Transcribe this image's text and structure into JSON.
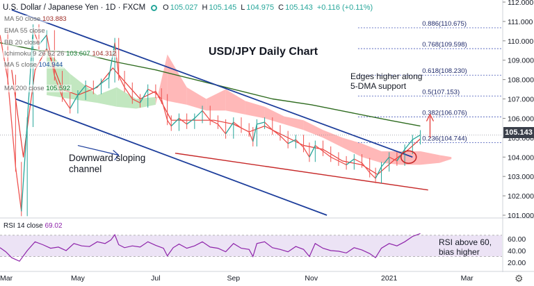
{
  "header": {
    "symbol": "U.S. Dollar / Japanese Yen · 1D · FXCM",
    "open_label": "O",
    "open": "105.027",
    "high_label": "H",
    "high": "105.145",
    "low_label": "L",
    "low": "104.975",
    "close_label": "C",
    "close": "105.143",
    "change": "+0.116 (+0.11%)"
  },
  "indicators": [
    {
      "label": "MA 50 close",
      "value": "103.883"
    },
    {
      "label": "EMA 55 close",
      "value": ""
    },
    {
      "label": "BB 20 close",
      "value": ""
    },
    {
      "label": "Ichimoku 9 26 52 26",
      "value": "103.607",
      "value2": "104.312"
    },
    {
      "label": "MA 5 close",
      "value": "104.944"
    },
    {
      "label": "MA 200 close",
      "value": "105.592"
    }
  ],
  "annotations": {
    "title": "USD/JPY Daily Chart",
    "edges": [
      "Edges higher along",
      "5-DMA support"
    ],
    "channel": [
      "Downward sloping",
      "channel"
    ],
    "rsi_note": [
      "RSI above 60,",
      "bias higher"
    ]
  },
  "current_price": "105.143",
  "rsi_label": "RSI 14 close",
  "rsi_value": "69.02",
  "colors": {
    "candle_up": "#26a69a",
    "candle_down": "#ef5350",
    "channel": "#1c3d9b",
    "support": "#c62828",
    "ma200": "#2e6b1f",
    "ma5": "#e53935",
    "cloud_red": "#ffabab",
    "cloud_green": "#b7e3b5",
    "fib": "#3f51b5",
    "rsi": "#8e24aa",
    "rsi_band": "#ece3f5",
    "price_tag": "#3a3f4a"
  },
  "chart_data": {
    "type": "line",
    "title": "USD/JPY Daily Chart",
    "price_axis": {
      "min": 101.0,
      "max": 112.0,
      "ticks": [
        "101.000",
        "102.000",
        "103.000",
        "104.000",
        "105.000",
        "106.000",
        "107.000",
        "108.000",
        "109.000",
        "110.000",
        "111.000",
        "112.000"
      ]
    },
    "rsi_axis": {
      "min": 20,
      "max": 60,
      "ticks": [
        "20.00",
        "40.00",
        "60.00"
      ],
      "band": [
        30,
        70
      ]
    },
    "x_axis": {
      "ticks": [
        "Mar",
        "May",
        "Jul",
        "Sep",
        "Nov",
        "2021",
        "Mar"
      ],
      "tick_positions": [
        0,
        2,
        4,
        6,
        8,
        10,
        12
      ],
      "span": [
        0,
        12.9
      ]
    },
    "last_bar_x": 10.8,
    "price_series": {
      "name": "USD/JPY",
      "points": [
        [
          0.0,
          110.3
        ],
        [
          0.2,
          108.0
        ],
        [
          0.4,
          103.5
        ],
        [
          0.55,
          101.2
        ],
        [
          0.7,
          105.8
        ],
        [
          0.85,
          110.6
        ],
        [
          1.0,
          109.8
        ],
        [
          1.2,
          110.3
        ],
        [
          1.4,
          108.2
        ],
        [
          1.6,
          107.1
        ],
        [
          1.8,
          106.5
        ],
        [
          2.0,
          107.2
        ],
        [
          2.2,
          107.7
        ],
        [
          2.4,
          107.5
        ],
        [
          2.6,
          107.8
        ],
        [
          2.8,
          108.1
        ],
        [
          2.95,
          109.9
        ],
        [
          3.05,
          108.2
        ],
        [
          3.2,
          107.6
        ],
        [
          3.4,
          107.0
        ],
        [
          3.6,
          106.8
        ],
        [
          3.8,
          107.5
        ],
        [
          4.0,
          107.3
        ],
        [
          4.15,
          107.0
        ],
        [
          4.3,
          105.9
        ],
        [
          4.4,
          105.6
        ],
        [
          4.6,
          106.0
        ],
        [
          4.8,
          105.7
        ],
        [
          5.0,
          106.0
        ],
        [
          5.2,
          106.4
        ],
        [
          5.4,
          105.9
        ],
        [
          5.6,
          105.7
        ],
        [
          5.8,
          105.2
        ],
        [
          6.0,
          105.8
        ],
        [
          6.2,
          105.5
        ],
        [
          6.4,
          105.3
        ],
        [
          6.5,
          104.8
        ],
        [
          6.6,
          105.7
        ],
        [
          6.8,
          105.8
        ],
        [
          7.0,
          105.4
        ],
        [
          7.2,
          105.1
        ],
        [
          7.4,
          104.7
        ],
        [
          7.6,
          104.9
        ],
        [
          7.8,
          104.5
        ],
        [
          7.95,
          104.0
        ],
        [
          8.1,
          104.6
        ],
        [
          8.3,
          104.3
        ],
        [
          8.5,
          104.0
        ],
        [
          8.7,
          103.8
        ],
        [
          8.9,
          103.6
        ],
        [
          9.1,
          103.9
        ],
        [
          9.3,
          103.7
        ],
        [
          9.5,
          103.2
        ],
        [
          9.65,
          102.9
        ],
        [
          9.8,
          103.5
        ],
        [
          10.0,
          104.0
        ],
        [
          10.2,
          103.8
        ],
        [
          10.4,
          104.4
        ],
        [
          10.6,
          104.9
        ],
        [
          10.8,
          105.14
        ]
      ]
    },
    "ma200": [
      [
        0,
        109.9
      ],
      [
        1,
        109.5
      ],
      [
        2,
        109.4
      ],
      [
        3,
        108.9
      ],
      [
        4,
        108.5
      ],
      [
        5,
        108.0
      ],
      [
        6,
        107.5
      ],
      [
        7,
        107.0
      ],
      [
        8,
        106.7
      ],
      [
        9,
        106.3
      ],
      [
        10,
        105.9
      ],
      [
        10.8,
        105.6
      ]
    ],
    "ma5": [
      [
        0.3,
        108.5
      ],
      [
        0.6,
        104.0
      ],
      [
        0.9,
        108.5
      ],
      [
        1.2,
        109.6
      ],
      [
        1.6,
        107.5
      ],
      [
        2.0,
        107.2
      ],
      [
        2.5,
        107.6
      ],
      [
        2.9,
        108.6
      ],
      [
        3.2,
        107.9
      ],
      [
        3.6,
        107.0
      ],
      [
        4.0,
        107.4
      ],
      [
        4.4,
        105.9
      ],
      [
        5.0,
        105.9
      ],
      [
        5.5,
        105.9
      ],
      [
        6.0,
        105.7
      ],
      [
        6.4,
        105.3
      ],
      [
        6.8,
        105.6
      ],
      [
        7.3,
        105.1
      ],
      [
        7.8,
        104.6
      ],
      [
        8.3,
        104.4
      ],
      [
        8.8,
        103.8
      ],
      [
        9.3,
        103.6
      ],
      [
        9.7,
        103.1
      ],
      [
        10.1,
        103.8
      ],
      [
        10.5,
        104.4
      ],
      [
        10.8,
        104.94
      ]
    ],
    "cloud": [
      {
        "x": 1.2,
        "a": 109.5,
        "b": 107.2
      },
      {
        "x": 1.8,
        "a": 108.3,
        "b": 107.0
      },
      {
        "x": 2.5,
        "a": 107.2,
        "b": 106.8
      },
      {
        "x": 3.0,
        "a": 107.6,
        "b": 106.6
      },
      {
        "x": 3.5,
        "a": 107.0,
        "b": 106.5
      },
      {
        "x": 4.0,
        "a": 107.1,
        "b": 106.7
      },
      {
        "x": 4.3,
        "a": 106.9,
        "b": 109.3
      },
      {
        "x": 4.8,
        "a": 106.7,
        "b": 107.6
      },
      {
        "x": 5.3,
        "a": 106.4,
        "b": 107.0
      },
      {
        "x": 5.8,
        "a": 106.4,
        "b": 107.5
      },
      {
        "x": 6.3,
        "a": 106.2,
        "b": 106.9
      },
      {
        "x": 6.8,
        "a": 106.0,
        "b": 106.6
      },
      {
        "x": 7.3,
        "a": 105.7,
        "b": 106.1
      },
      {
        "x": 7.8,
        "a": 105.4,
        "b": 105.9
      },
      {
        "x": 8.3,
        "a": 105.0,
        "b": 105.4
      },
      {
        "x": 8.8,
        "a": 104.5,
        "b": 105.0
      },
      {
        "x": 9.3,
        "a": 104.0,
        "b": 104.7
      },
      {
        "x": 9.8,
        "a": 103.7,
        "b": 104.3
      },
      {
        "x": 10.3,
        "a": 103.6,
        "b": 104.3
      },
      {
        "x": 10.8,
        "a": 103.6,
        "b": 104.3
      },
      {
        "x": 11.3,
        "a": 103.7,
        "b": 104.1
      },
      {
        "x": 11.6,
        "a": 103.9,
        "b": 104.0
      }
    ],
    "channel_upper": [
      [
        0.3,
        111.6
      ],
      [
        10.6,
        104.0
      ]
    ],
    "channel_lower": [
      [
        0.4,
        107.0
      ],
      [
        8.4,
        101.0
      ]
    ],
    "support_line": [
      [
        4.5,
        104.2
      ],
      [
        11.0,
        102.3
      ]
    ],
    "fib_levels": [
      {
        "ratio": "0.886",
        "price": 110.675
      },
      {
        "ratio": "0.768",
        "price": 109.598
      },
      {
        "ratio": "0.618",
        "price": 108.23
      },
      {
        "ratio": "0.5",
        "price": 107.153
      },
      {
        "ratio": "0.382",
        "price": 106.076
      },
      {
        "ratio": "0.236",
        "price": 104.744
      }
    ],
    "rsi": [
      [
        0.0,
        45
      ],
      [
        0.15,
        38
      ],
      [
        0.3,
        28
      ],
      [
        0.5,
        22
      ],
      [
        0.7,
        40
      ],
      [
        0.9,
        55
      ],
      [
        1.1,
        50
      ],
      [
        1.3,
        44
      ],
      [
        1.5,
        46
      ],
      [
        1.7,
        40
      ],
      [
        1.9,
        52
      ],
      [
        2.1,
        48
      ],
      [
        2.3,
        47
      ],
      [
        2.5,
        55
      ],
      [
        2.7,
        52
      ],
      [
        2.85,
        58
      ],
      [
        2.95,
        67
      ],
      [
        3.05,
        50
      ],
      [
        3.2,
        45
      ],
      [
        3.4,
        48
      ],
      [
        3.6,
        46
      ],
      [
        3.8,
        55
      ],
      [
        4.0,
        49
      ],
      [
        4.2,
        44
      ],
      [
        4.3,
        31
      ],
      [
        4.45,
        45
      ],
      [
        4.6,
        51
      ],
      [
        4.8,
        44
      ],
      [
        5.0,
        48
      ],
      [
        5.2,
        55
      ],
      [
        5.4,
        46
      ],
      [
        5.6,
        44
      ],
      [
        5.8,
        38
      ],
      [
        6.0,
        52
      ],
      [
        6.2,
        44
      ],
      [
        6.4,
        42
      ],
      [
        6.5,
        30
      ],
      [
        6.6,
        52
      ],
      [
        6.8,
        55
      ],
      [
        7.0,
        45
      ],
      [
        7.2,
        42
      ],
      [
        7.4,
        38
      ],
      [
        7.6,
        47
      ],
      [
        7.8,
        42
      ],
      [
        7.95,
        30
      ],
      [
        8.1,
        52
      ],
      [
        8.3,
        44
      ],
      [
        8.5,
        40
      ],
      [
        8.7,
        39
      ],
      [
        8.9,
        36
      ],
      [
        9.1,
        45
      ],
      [
        9.3,
        41
      ],
      [
        9.5,
        35
      ],
      [
        9.65,
        28
      ],
      [
        9.8,
        44
      ],
      [
        10.0,
        52
      ],
      [
        10.2,
        48
      ],
      [
        10.4,
        55
      ],
      [
        10.6,
        64
      ],
      [
        10.8,
        69
      ]
    ]
  }
}
